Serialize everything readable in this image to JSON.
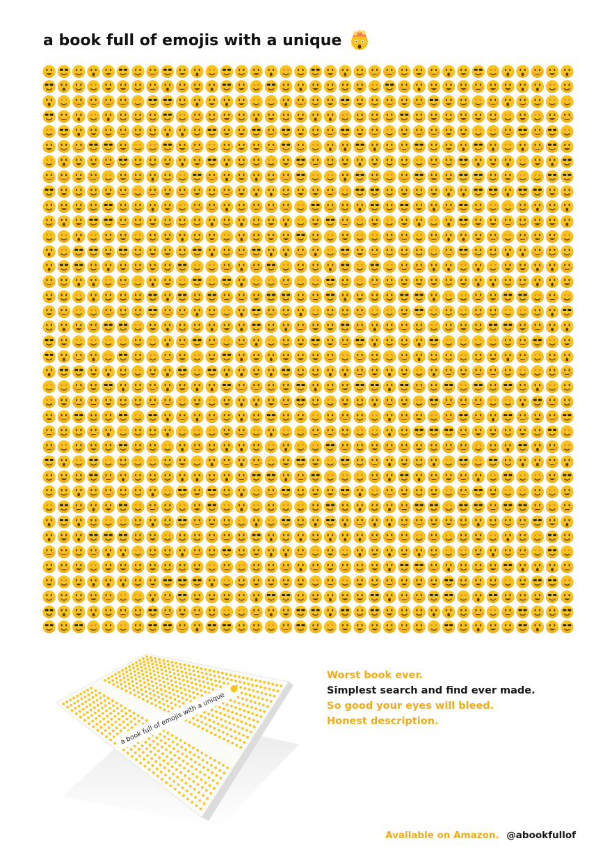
{
  "header": {
    "title": "a book full of emojis with a unique",
    "title_icon": "exploding-head-icon"
  },
  "emoji_grid": {
    "description_icon": "smiley-face-icons",
    "colors": {
      "face": "#f8c21f",
      "face_shade": "#e7a30f",
      "feature": "#5b3a13",
      "blush": "#ef6a4a"
    }
  },
  "book_mockup": {
    "cover_title": "a book full of emojis with a unique"
  },
  "tagline": {
    "line1": "Worst book ever.",
    "line2": "Simplest search and find ever made.",
    "line3": "So good your eyes will bleed.",
    "line4": "Honest description."
  },
  "footer": {
    "availability": "Available on Amazon.",
    "handle": "@abookfullof"
  },
  "colors": {
    "accent": "#f0ab1b",
    "text": "#161616"
  }
}
